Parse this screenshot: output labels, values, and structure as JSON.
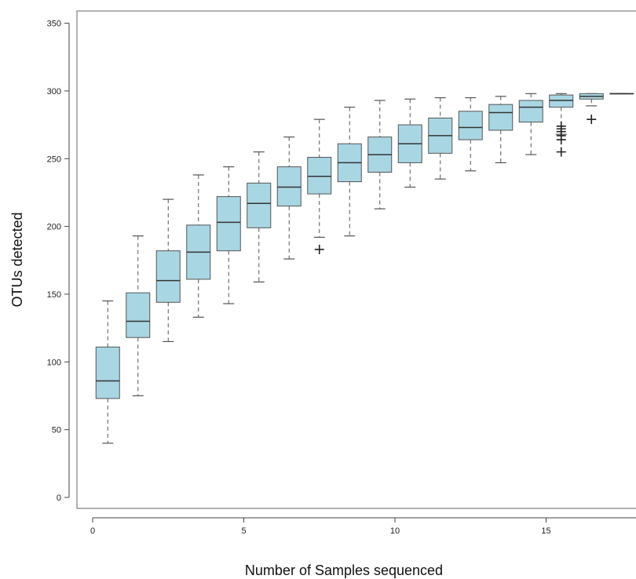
{
  "chart_data": {
    "type": "box",
    "title": "",
    "xlabel": "Number of Samples sequenced",
    "ylabel": "OTUs detected",
    "xlim": [
      0,
      18
    ],
    "ylim": [
      0,
      350
    ],
    "xticks": [
      0,
      5,
      10,
      15
    ],
    "yticks": [
      0,
      50,
      100,
      150,
      200,
      250,
      300,
      350
    ],
    "grid": false,
    "box_color": "#a9d6e3",
    "line_color": "#555555",
    "boxes": [
      {
        "x": 1,
        "whisker_low": 40,
        "q1": 73,
        "median": 86,
        "q3": 111,
        "whisker_high": 145,
        "outliers": []
      },
      {
        "x": 2,
        "whisker_low": 75,
        "q1": 118,
        "median": 130,
        "q3": 151,
        "whisker_high": 193,
        "outliers": []
      },
      {
        "x": 3,
        "whisker_low": 115,
        "q1": 144,
        "median": 160,
        "q3": 182,
        "whisker_high": 220,
        "outliers": []
      },
      {
        "x": 4,
        "whisker_low": 133,
        "q1": 161,
        "median": 181,
        "q3": 201,
        "whisker_high": 238,
        "outliers": []
      },
      {
        "x": 5,
        "whisker_low": 143,
        "q1": 182,
        "median": 203,
        "q3": 222,
        "whisker_high": 244,
        "outliers": []
      },
      {
        "x": 6,
        "whisker_low": 159,
        "q1": 199,
        "median": 217,
        "q3": 232,
        "whisker_high": 255,
        "outliers": []
      },
      {
        "x": 7,
        "whisker_low": 176,
        "q1": 215,
        "median": 229,
        "q3": 244,
        "whisker_high": 266,
        "outliers": []
      },
      {
        "x": 8,
        "whisker_low": 192,
        "q1": 224,
        "median": 237,
        "q3": 251,
        "whisker_high": 279,
        "outliers": [
          183
        ]
      },
      {
        "x": 9,
        "whisker_low": 193,
        "q1": 233,
        "median": 247,
        "q3": 261,
        "whisker_high": 288,
        "outliers": []
      },
      {
        "x": 10,
        "whisker_low": 213,
        "q1": 240,
        "median": 253,
        "q3": 266,
        "whisker_high": 293,
        "outliers": []
      },
      {
        "x": 11,
        "whisker_low": 229,
        "q1": 247,
        "median": 261,
        "q3": 275,
        "whisker_high": 294,
        "outliers": []
      },
      {
        "x": 12,
        "whisker_low": 235,
        "q1": 254,
        "median": 267,
        "q3": 280,
        "whisker_high": 295,
        "outliers": []
      },
      {
        "x": 13,
        "whisker_low": 241,
        "q1": 264,
        "median": 273,
        "q3": 285,
        "whisker_high": 295,
        "outliers": []
      },
      {
        "x": 14,
        "whisker_low": 247,
        "q1": 271,
        "median": 284,
        "q3": 290,
        "whisker_high": 296,
        "outliers": []
      },
      {
        "x": 15,
        "whisker_low": 253,
        "q1": 277,
        "median": 288,
        "q3": 293,
        "whisker_high": 298,
        "outliers": []
      },
      {
        "x": 16,
        "whisker_low": 268,
        "q1": 288,
        "median": 293,
        "q3": 297,
        "whisker_high": 298,
        "outliers": [
          255,
          264,
          267,
          270,
          272,
          274
        ]
      },
      {
        "x": 17,
        "whisker_low": 289,
        "q1": 294,
        "median": 296,
        "q3": 298,
        "whisker_high": 298,
        "outliers": [
          279
        ]
      },
      {
        "x": 18,
        "whisker_low": 298,
        "q1": 298,
        "median": 298,
        "q3": 298,
        "whisker_high": 298,
        "outliers": []
      }
    ]
  }
}
